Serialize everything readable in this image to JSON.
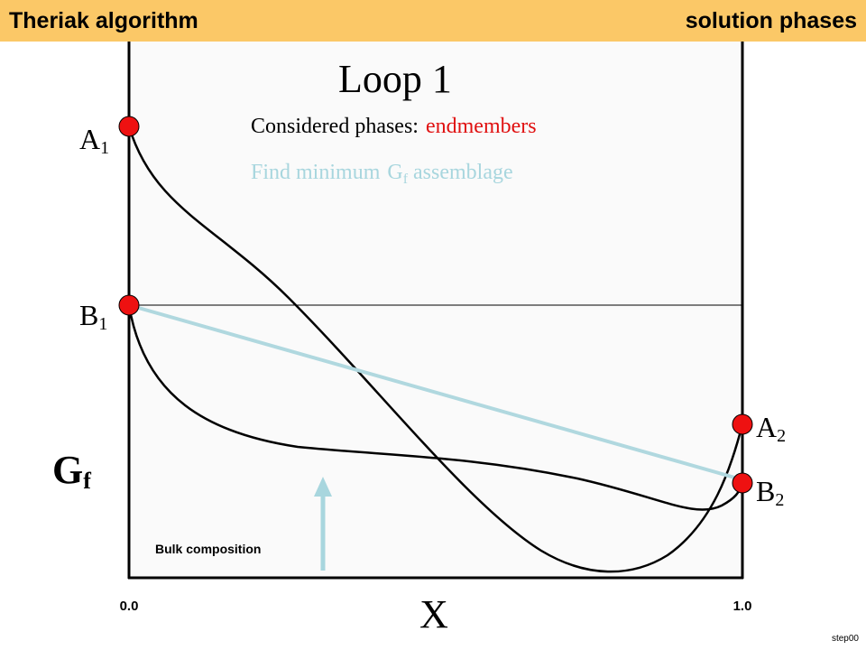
{
  "header": {
    "left": "Theriak algorithm",
    "right": "solution phases"
  },
  "title": "Loop 1",
  "considered": {
    "label": "Considered phases:",
    "value": "endmembers"
  },
  "instruction": {
    "text": "Find minimum",
    "symbol": "G",
    "subscript": "f",
    "rest": "assemblage"
  },
  "points": [
    {
      "letter": "A",
      "index": "1"
    },
    {
      "letter": "B",
      "index": "1"
    },
    {
      "letter": "A",
      "index": "2"
    },
    {
      "letter": "B",
      "index": "2"
    }
  ],
  "axis": {
    "y_label": "G",
    "y_sub": "f",
    "x_label": "X",
    "x_min": "0.0",
    "x_max": "1.0"
  },
  "arrow_label": "Bulk composition",
  "footer": "step00"
}
